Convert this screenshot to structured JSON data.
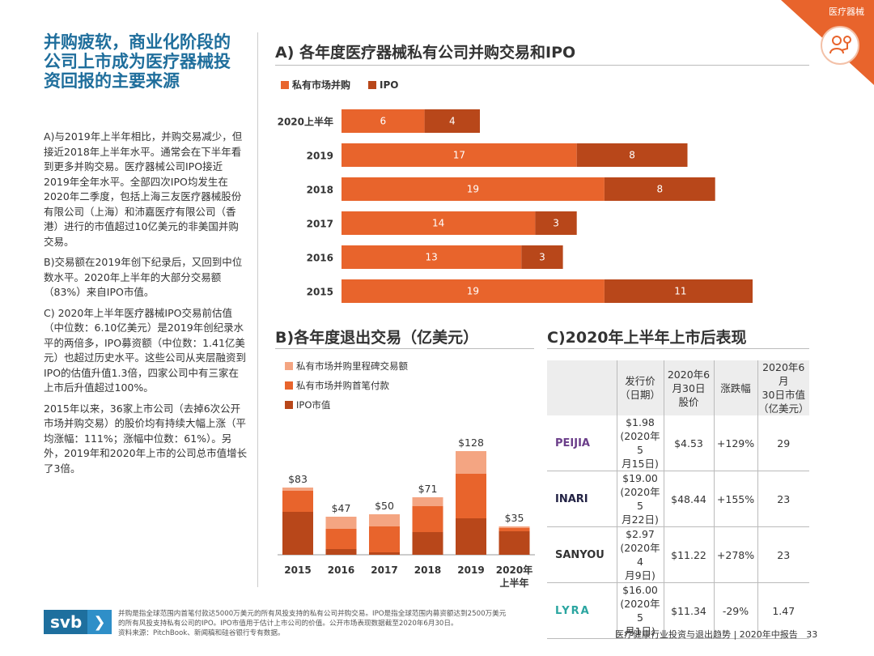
{
  "corner_tag": {
    "label": "医疗器械",
    "icon": "medical-device-icon"
  },
  "title": "并购疲软，商业化阶段的公司上市成为医疗器械投资回报的主要来源",
  "paragraphs": [
    "A)与2019年上半年相比，并购交易减少，但接近2018年上半年水平。通常会在下半年看到更多并购交易。医疗器械公司IPO接近2019年全年水平。全部四次IPO均发生在2020年二季度，包括上海三友医疗器械股份有限公司（上海）和沛嘉医疗有限公司（香港）进行的市值超过10亿美元的非美国并购交易。",
    "B)交易额在2019年创下纪录后，又回到中位数水平。2020年上半年的大部分交易额（83%）来自IPO市值。",
    "C) 2020年上半年医疗器械IPO交易前估值（中位数：6.10亿美元）是2019年创纪录水平的两倍多，IPO募资额（中位数：1.41亿美元）也超过历史水平。这些公司从夹层融资到IPO的估值升值1.3倍，四家公司中有三家在上市后升值超过100%。",
    "2015年以来，36家上市公司（去掉6次公开市场并购交易）的股价均有持续大幅上涨（平均涨幅：111%；涨幅中位数：61%）。另外，2019年和2020年上市的公司总市值增长了3倍。"
  ],
  "section_a": {
    "title": "A) 各年度医疗器械私有公司并购交易和IPO"
  },
  "section_b": {
    "title": "B)各年度退出交易（亿美元）"
  },
  "section_c": {
    "title": "C)2020年上半年上市后表现",
    "headers": [
      "",
      "发行价\n（日期）",
      "2020年6\n月30日\n股价",
      "涨跌幅",
      "2020年6月\n30日市值\n（亿美元）"
    ],
    "rows": [
      {
        "company": "PEIJIA",
        "logo_icon": "peijia-logo-icon",
        "issue": "$1.98\n(2020年5\n月15日)",
        "price": "$4.53",
        "change": "+129%",
        "cap": "29"
      },
      {
        "company": "INARI",
        "logo_icon": "inari-logo-icon",
        "issue": "$19.00\n(2020年5\n月22日)",
        "price": "$48.44",
        "change": "+155%",
        "cap": "23"
      },
      {
        "company": "SANYOU",
        "logo_icon": "sanyou-logo-icon",
        "issue": "$2.97\n(2020年4\n月9日)",
        "price": "$11.22",
        "change": "+278%",
        "cap": "23"
      },
      {
        "company": "LYRA",
        "logo_icon": "lyra-logo-icon",
        "issue": "$16.00\n(2020年5\n月1日)",
        "price": "$11.34",
        "change": "-29%",
        "cap": "1.47"
      }
    ]
  },
  "chart_data": [
    {
      "type": "bar",
      "orientation": "horizontal",
      "stacked": true,
      "categories": [
        "2020上半年",
        "2019",
        "2018",
        "2017",
        "2016",
        "2015"
      ],
      "series": [
        {
          "name": "私有市场并购",
          "color": "#e8642c",
          "values": [
            6,
            17,
            19,
            14,
            13,
            19
          ]
        },
        {
          "name": "IPO",
          "color": "#b8471a",
          "values": [
            4,
            8,
            8,
            3,
            3,
            11
          ]
        }
      ],
      "xlim": [
        0,
        30
      ],
      "legend": "top-left",
      "grid": false
    },
    {
      "type": "bar",
      "orientation": "vertical",
      "stacked": true,
      "categories": [
        "2015",
        "2016",
        "2017",
        "2018",
        "2019",
        "2020年\n上半年"
      ],
      "series": [
        {
          "name": "IPO市值",
          "color": "#b8471a",
          "values": [
            53,
            7,
            3,
            28,
            45,
            29
          ]
        },
        {
          "name": "私有市场并购首笔付款",
          "color": "#e8642c",
          "values": [
            26,
            25,
            32,
            32,
            55,
            4
          ]
        },
        {
          "name": "私有市场并购里程碑交易额",
          "color": "#f4a582",
          "values": [
            4,
            15,
            15,
            11,
            28,
            2
          ]
        }
      ],
      "totals": [
        "$83",
        "$47",
        "$50",
        "$71",
        "$128",
        "$35"
      ],
      "ylim": [
        0,
        140
      ],
      "legend": "top-left",
      "grid": false
    }
  ],
  "footer": {
    "brand": "svb",
    "note": "并购是指全球范围内首笔付款达5000万美元的所有风投支持的私有公司并购交易。IPO是指全球范围内募资额达到2500万美元的所有风投支持私有公司的IPO。IPO市值用于估计上市公司的价值。公开市场表现数据截至2020年6月30日。\n资料来源：PitchBook、新闻稿和硅谷银行专有数据。",
    "report": "医疗健康行业投资与退出趋势 | 2020年中报告",
    "page": "33"
  }
}
